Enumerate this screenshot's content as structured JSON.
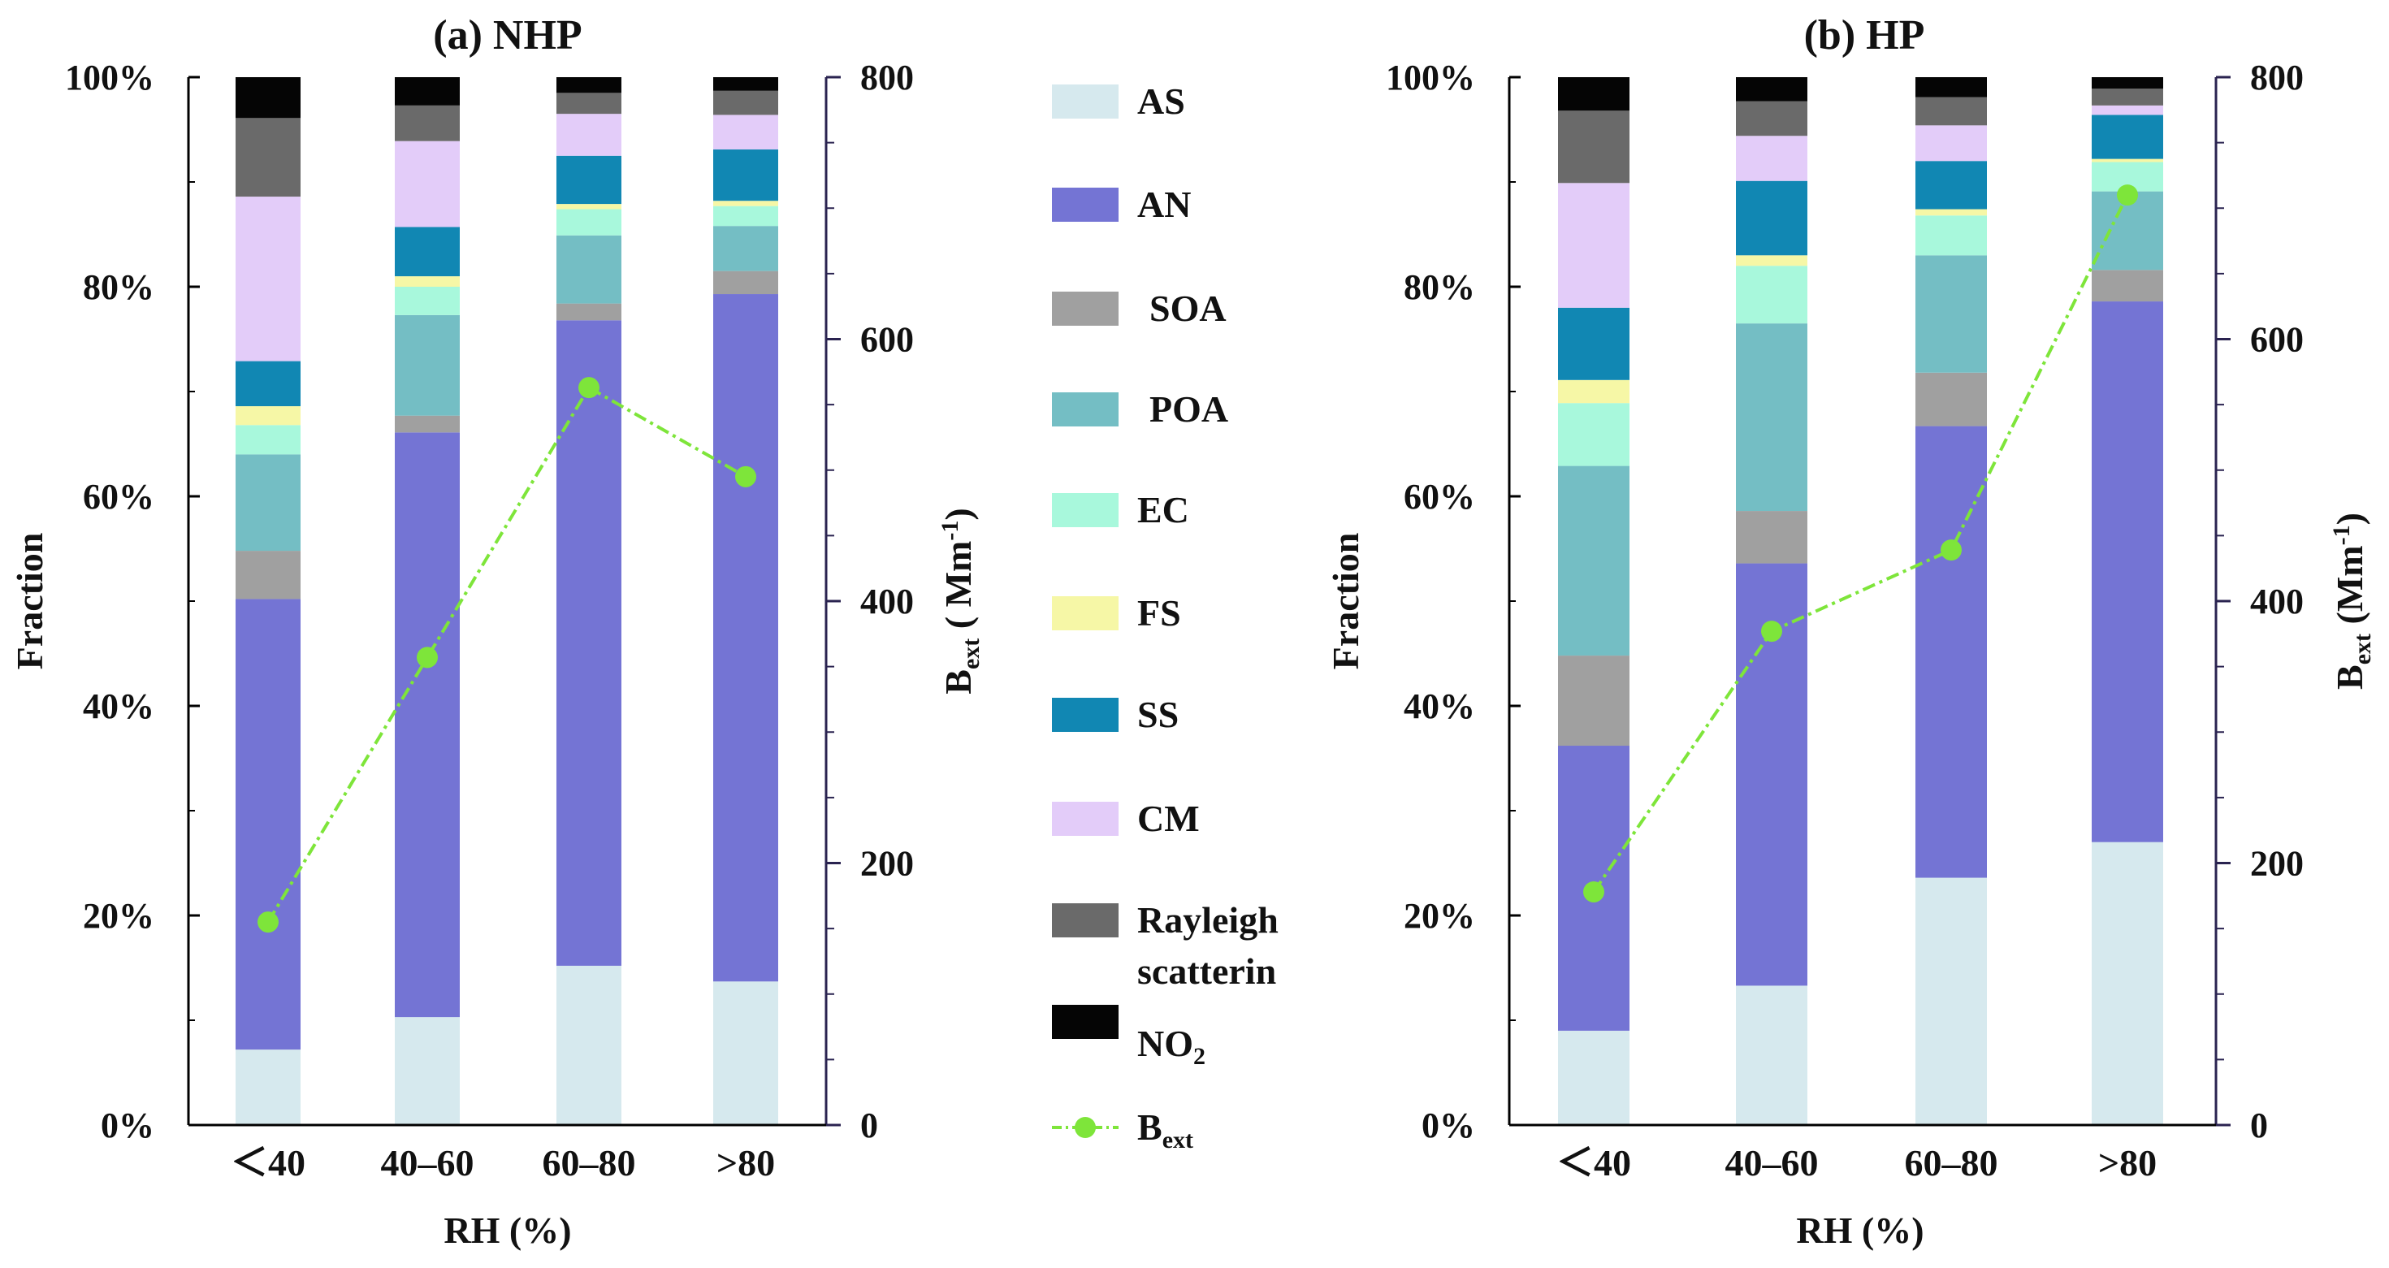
{
  "colors": {
    "AS": "#d6e9ee",
    "AN": "#7474d4",
    "SOA": "#a0a0a0",
    "POA": "#74bec4",
    "EC": "#a8f8dc",
    "FS": "#f6f7a6",
    "SS": "#1187b3",
    "CM": "#e3ccf9",
    "Rayleigh": "#6a6a6a",
    "NO2": "#050505",
    "Bext": "#7ee53a"
  },
  "legend": {
    "items": [
      {
        "key": "AS",
        "label": "AS"
      },
      {
        "key": "AN",
        "label": "AN"
      },
      {
        "key": "SOA",
        "label": "SOA"
      },
      {
        "key": "POA",
        "label": "POA"
      },
      {
        "key": "EC",
        "label": "EC"
      },
      {
        "key": "FS",
        "label": "FS"
      },
      {
        "key": "SS",
        "label": "SS"
      },
      {
        "key": "CM",
        "label": "CM"
      },
      {
        "key": "Rayleigh",
        "label": "Rayleigh",
        "label2": "scatterin"
      },
      {
        "key": "NO2",
        "label": "NO",
        "sub": "2"
      }
    ],
    "bext": {
      "label": "B",
      "sub": "ext"
    }
  },
  "chart_data": [
    {
      "type": "bar",
      "stacked": true,
      "title": "(a) NHP",
      "xlabel": "RH (%)",
      "ylabel": "Fraction",
      "y2label": {
        "main": "B",
        "sub": "ext",
        "rest": " ( Mm",
        "sup": "-1",
        "end": ")"
      },
      "categories": [
        "＜40",
        "40–60",
        "60–80",
        ">80"
      ],
      "ylim": [
        0,
        100
      ],
      "yticks": [
        "0%",
        "20%",
        "40%",
        "60%",
        "80%",
        "100%"
      ],
      "y2lim": [
        0,
        800
      ],
      "y2ticks": [
        "0",
        "200",
        "400",
        "600",
        "800"
      ],
      "series": [
        {
          "name": "AS",
          "values": [
            7.2,
            10.3,
            15.2,
            13.7
          ]
        },
        {
          "name": "AN",
          "values": [
            43.0,
            55.8,
            61.6,
            65.6
          ]
        },
        {
          "name": "SOA",
          "values": [
            4.6,
            1.6,
            1.6,
            2.2
          ]
        },
        {
          "name": "POA",
          "values": [
            9.2,
            9.6,
            6.5,
            4.3
          ]
        },
        {
          "name": "EC",
          "values": [
            2.8,
            2.7,
            2.5,
            1.9
          ]
        },
        {
          "name": "FS",
          "values": [
            1.8,
            1.0,
            0.5,
            0.5
          ]
        },
        {
          "name": "SS",
          "values": [
            4.3,
            4.7,
            4.6,
            4.9
          ]
        },
        {
          "name": "CM",
          "values": [
            15.7,
            8.2,
            4.0,
            3.3
          ]
        },
        {
          "name": "Rayleigh",
          "values": [
            7.5,
            3.4,
            2.0,
            2.3
          ]
        },
        {
          "name": "NO2",
          "values": [
            3.9,
            2.7,
            1.5,
            1.3
          ]
        }
      ],
      "line": {
        "name": "Bext",
        "axis": "right",
        "values": [
          155,
          357,
          563,
          495
        ]
      }
    },
    {
      "type": "bar",
      "stacked": true,
      "title": "(b) HP",
      "xlabel": "RH (%)",
      "ylabel": "Fraction",
      "y2label": {
        "main": "B",
        "sub": "ext",
        "rest": " (Mm",
        "sup": "-1",
        "end": ")"
      },
      "categories": [
        "＜40",
        "40–60",
        "60–80",
        ">80"
      ],
      "ylim": [
        0,
        100
      ],
      "yticks": [
        "0%",
        "20%",
        "40%",
        "60%",
        "80%",
        "100%"
      ],
      "y2lim": [
        0,
        800
      ],
      "y2ticks": [
        "0",
        "200",
        "400",
        "600",
        "800"
      ],
      "series": [
        {
          "name": "AS",
          "values": [
            9.0,
            13.3,
            23.6,
            27.0
          ]
        },
        {
          "name": "AN",
          "values": [
            27.2,
            40.3,
            43.1,
            51.6
          ]
        },
        {
          "name": "SOA",
          "values": [
            8.6,
            5.0,
            5.1,
            3.0
          ]
        },
        {
          "name": "POA",
          "values": [
            18.1,
            17.9,
            11.2,
            7.5
          ]
        },
        {
          "name": "EC",
          "values": [
            6.0,
            5.5,
            3.8,
            2.8
          ]
        },
        {
          "name": "FS",
          "values": [
            2.2,
            1.0,
            0.6,
            0.3
          ]
        },
        {
          "name": "SS",
          "values": [
            6.9,
            7.1,
            4.6,
            4.2
          ]
        },
        {
          "name": "CM",
          "values": [
            11.9,
            4.3,
            3.4,
            0.9
          ]
        },
        {
          "name": "Rayleigh",
          "values": [
            6.9,
            3.3,
            2.7,
            1.6
          ]
        },
        {
          "name": "NO2",
          "values": [
            3.2,
            2.3,
            1.9,
            1.1
          ]
        }
      ],
      "line": {
        "name": "Bext",
        "axis": "right",
        "values": [
          178,
          377,
          439,
          710
        ]
      }
    }
  ]
}
